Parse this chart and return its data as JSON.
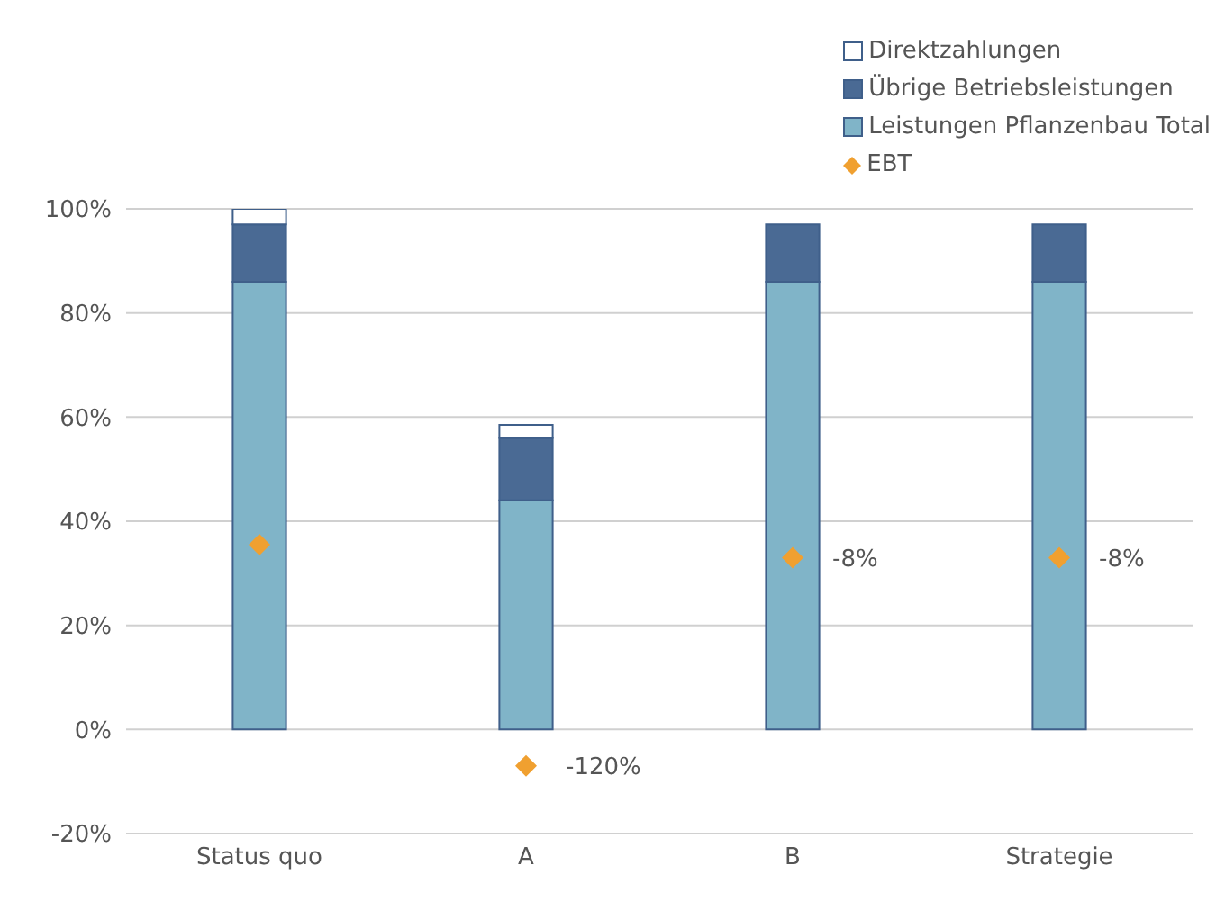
{
  "chart_data": {
    "type": "bar",
    "stacked": true,
    "categories": [
      "Status quo",
      "A",
      "B",
      "Strategie"
    ],
    "series": [
      {
        "name": "Leistungen Pflanzenbau Total",
        "color": "#80b4c8",
        "values": [
          86,
          44,
          86,
          86
        ]
      },
      {
        "name": "Übrige Betriebsleistungen",
        "color": "#4a6a94",
        "values": [
          11,
          12,
          11,
          11
        ]
      },
      {
        "name": "Direktzahlungen",
        "color": "#ffffff",
        "values": [
          3,
          2.5,
          0,
          0
        ]
      },
      {
        "name": "EBT",
        "type": "scatter",
        "color": "#f0a030",
        "values": [
          35.5,
          -7,
          33,
          33
        ]
      }
    ],
    "annotations": [
      {
        "text": "-120%",
        "x": "A",
        "y": -7
      },
      {
        "text": "-8%",
        "x": "B",
        "y": 33
      },
      {
        "text": "-8%",
        "x": "Strategie",
        "y": 33
      }
    ],
    "ylim": [
      -20,
      100
    ],
    "yticks": [
      {
        "value": -20,
        "label": "-20%"
      },
      {
        "value": 0,
        "label": "0%"
      },
      {
        "value": 20,
        "label": "20%"
      },
      {
        "value": 40,
        "label": "40%"
      },
      {
        "value": 60,
        "label": "60%"
      },
      {
        "value": 80,
        "label": "80%"
      },
      {
        "value": 100,
        "label": "100%"
      }
    ],
    "grid": "y",
    "legend": "top right",
    "marker": "diamond"
  }
}
